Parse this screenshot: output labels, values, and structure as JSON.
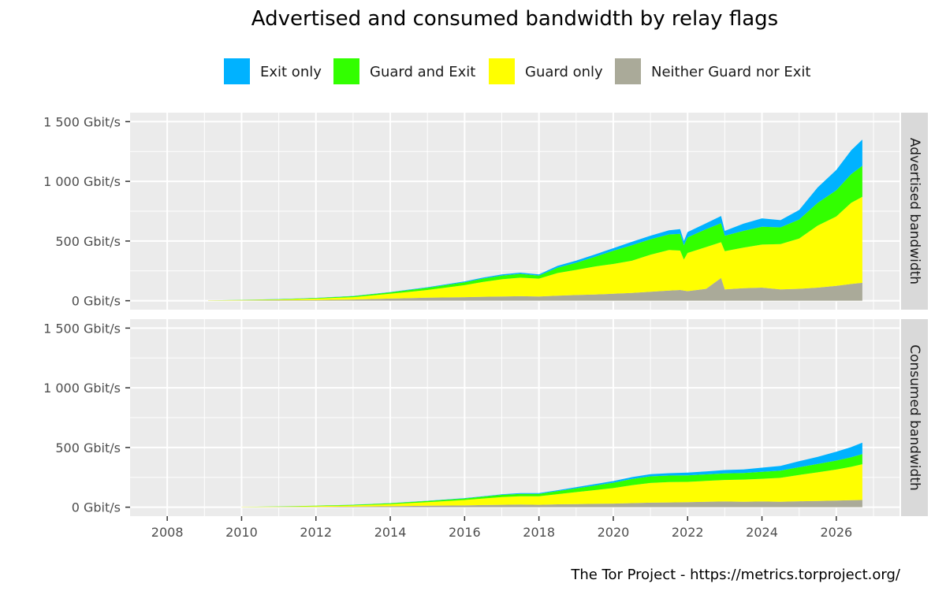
{
  "chart_data": {
    "type": "area",
    "title": "Advertised and consumed bandwidth by relay flags",
    "caption": "The Tor Project - https://metrics.torproject.org/",
    "legend_position": "top",
    "grid": true,
    "stacked": true,
    "x_ticks": [
      "2008",
      "2010",
      "2012",
      "2014",
      "2016",
      "2018",
      "2020",
      "2022",
      "2024",
      "2026"
    ],
    "xlim": [
      2007.0,
      2027.7
    ],
    "y_ticks": [
      0,
      500,
      1000,
      1500
    ],
    "y_tick_labels": [
      "0 Gbit/s",
      "500 Gbit/s",
      "1 000 Gbit/s",
      "1 500 Gbit/s"
    ],
    "ylim": [
      -75,
      1575
    ],
    "series_legend": [
      {
        "name": "Exit only",
        "color": "#00B2FF"
      },
      {
        "name": "Guard and Exit",
        "color": "#32FF00"
      },
      {
        "name": "Guard only",
        "color": "#FFFF00"
      },
      {
        "name": "Neither Guard nor Exit",
        "color": "#AAAA99"
      }
    ],
    "facets": [
      {
        "label": "Advertised bandwidth",
        "x": [
          2009.1,
          2010.0,
          2011.0,
          2012.0,
          2013.0,
          2014.0,
          2015.0,
          2016.0,
          2016.5,
          2017.0,
          2017.5,
          2018.0,
          2018.5,
          2019.0,
          2019.5,
          2020.0,
          2020.5,
          2021.0,
          2021.5,
          2021.8,
          2021.9,
          2022.0,
          2022.5,
          2022.9,
          2023.0,
          2023.5,
          2024.0,
          2024.5,
          2025.0,
          2025.5,
          2026.0,
          2026.4,
          2026.7
        ],
        "series": [
          {
            "name": "Neither Guard nor Exit",
            "values": [
              1,
              2,
              4,
              6,
              10,
              18,
              25,
              30,
              33,
              35,
              38,
              35,
              42,
              48,
              52,
              58,
              65,
              75,
              85,
              90,
              85,
              80,
              100,
              190,
              95,
              105,
              110,
              95,
              100,
              110,
              125,
              140,
              150
            ]
          },
          {
            "name": "Guard only",
            "values": [
              1,
              3,
              6,
              12,
              20,
              40,
              65,
              100,
              125,
              145,
              155,
              150,
              190,
              210,
              235,
              250,
              270,
              310,
              340,
              330,
              260,
              320,
              350,
              300,
              320,
              340,
              360,
              380,
              420,
              520,
              580,
              680,
              720
            ]
          },
          {
            "name": "Guard and Exit",
            "values": [
              1,
              2,
              3,
              5,
              8,
              12,
              18,
              25,
              28,
              30,
              32,
              25,
              45,
              60,
              80,
              110,
              130,
              130,
              130,
              140,
              120,
              130,
              150,
              160,
              130,
              140,
              150,
              140,
              160,
              190,
              220,
              240,
              260
            ]
          },
          {
            "name": "Exit only",
            "values": [
              0,
              0,
              1,
              1,
              2,
              3,
              5,
              7,
              8,
              10,
              10,
              10,
              15,
              18,
              20,
              22,
              28,
              30,
              35,
              40,
              35,
              45,
              50,
              60,
              40,
              60,
              70,
              60,
              80,
              130,
              170,
              200,
              220
            ]
          }
        ]
      },
      {
        "label": "Consumed bandwidth",
        "x": [
          2010.0,
          2011.0,
          2012.0,
          2013.0,
          2014.0,
          2015.0,
          2016.0,
          2016.5,
          2017.0,
          2017.5,
          2018.0,
          2018.5,
          2019.0,
          2019.5,
          2020.0,
          2020.5,
          2021.0,
          2021.5,
          2022.0,
          2022.5,
          2023.0,
          2023.5,
          2024.0,
          2024.5,
          2025.0,
          2025.5,
          2026.0,
          2026.4,
          2026.7
        ],
        "series": [
          {
            "name": "Neither Guard nor Exit",
            "values": [
              1,
              2,
              3,
              5,
              8,
              12,
              15,
              18,
              20,
              22,
              20,
              24,
              26,
              28,
              30,
              34,
              38,
              40,
              42,
              45,
              48,
              46,
              48,
              46,
              50,
              52,
              55,
              58,
              60
            ]
          },
          {
            "name": "Guard only",
            "values": [
              1,
              3,
              6,
              10,
              18,
              30,
              45,
              55,
              65,
              70,
              72,
              85,
              100,
              115,
              130,
              150,
              165,
              170,
              170,
              175,
              180,
              185,
              190,
              200,
              220,
              240,
              260,
              280,
              300
            ]
          },
          {
            "name": "Guard and Exit",
            "values": [
              1,
              2,
              3,
              5,
              7,
              10,
              13,
              15,
              18,
              20,
              20,
              25,
              32,
              38,
              45,
              52,
              55,
              55,
              55,
              55,
              55,
              55,
              58,
              60,
              65,
              70,
              75,
              80,
              85
            ]
          },
          {
            "name": "Exit only",
            "values": [
              0,
              0,
              1,
              1,
              1,
              2,
              3,
              4,
              5,
              6,
              6,
              8,
              10,
              12,
              14,
              16,
              18,
              20,
              22,
              25,
              28,
              30,
              35,
              40,
              50,
              60,
              75,
              85,
              95
            ]
          }
        ]
      }
    ]
  }
}
